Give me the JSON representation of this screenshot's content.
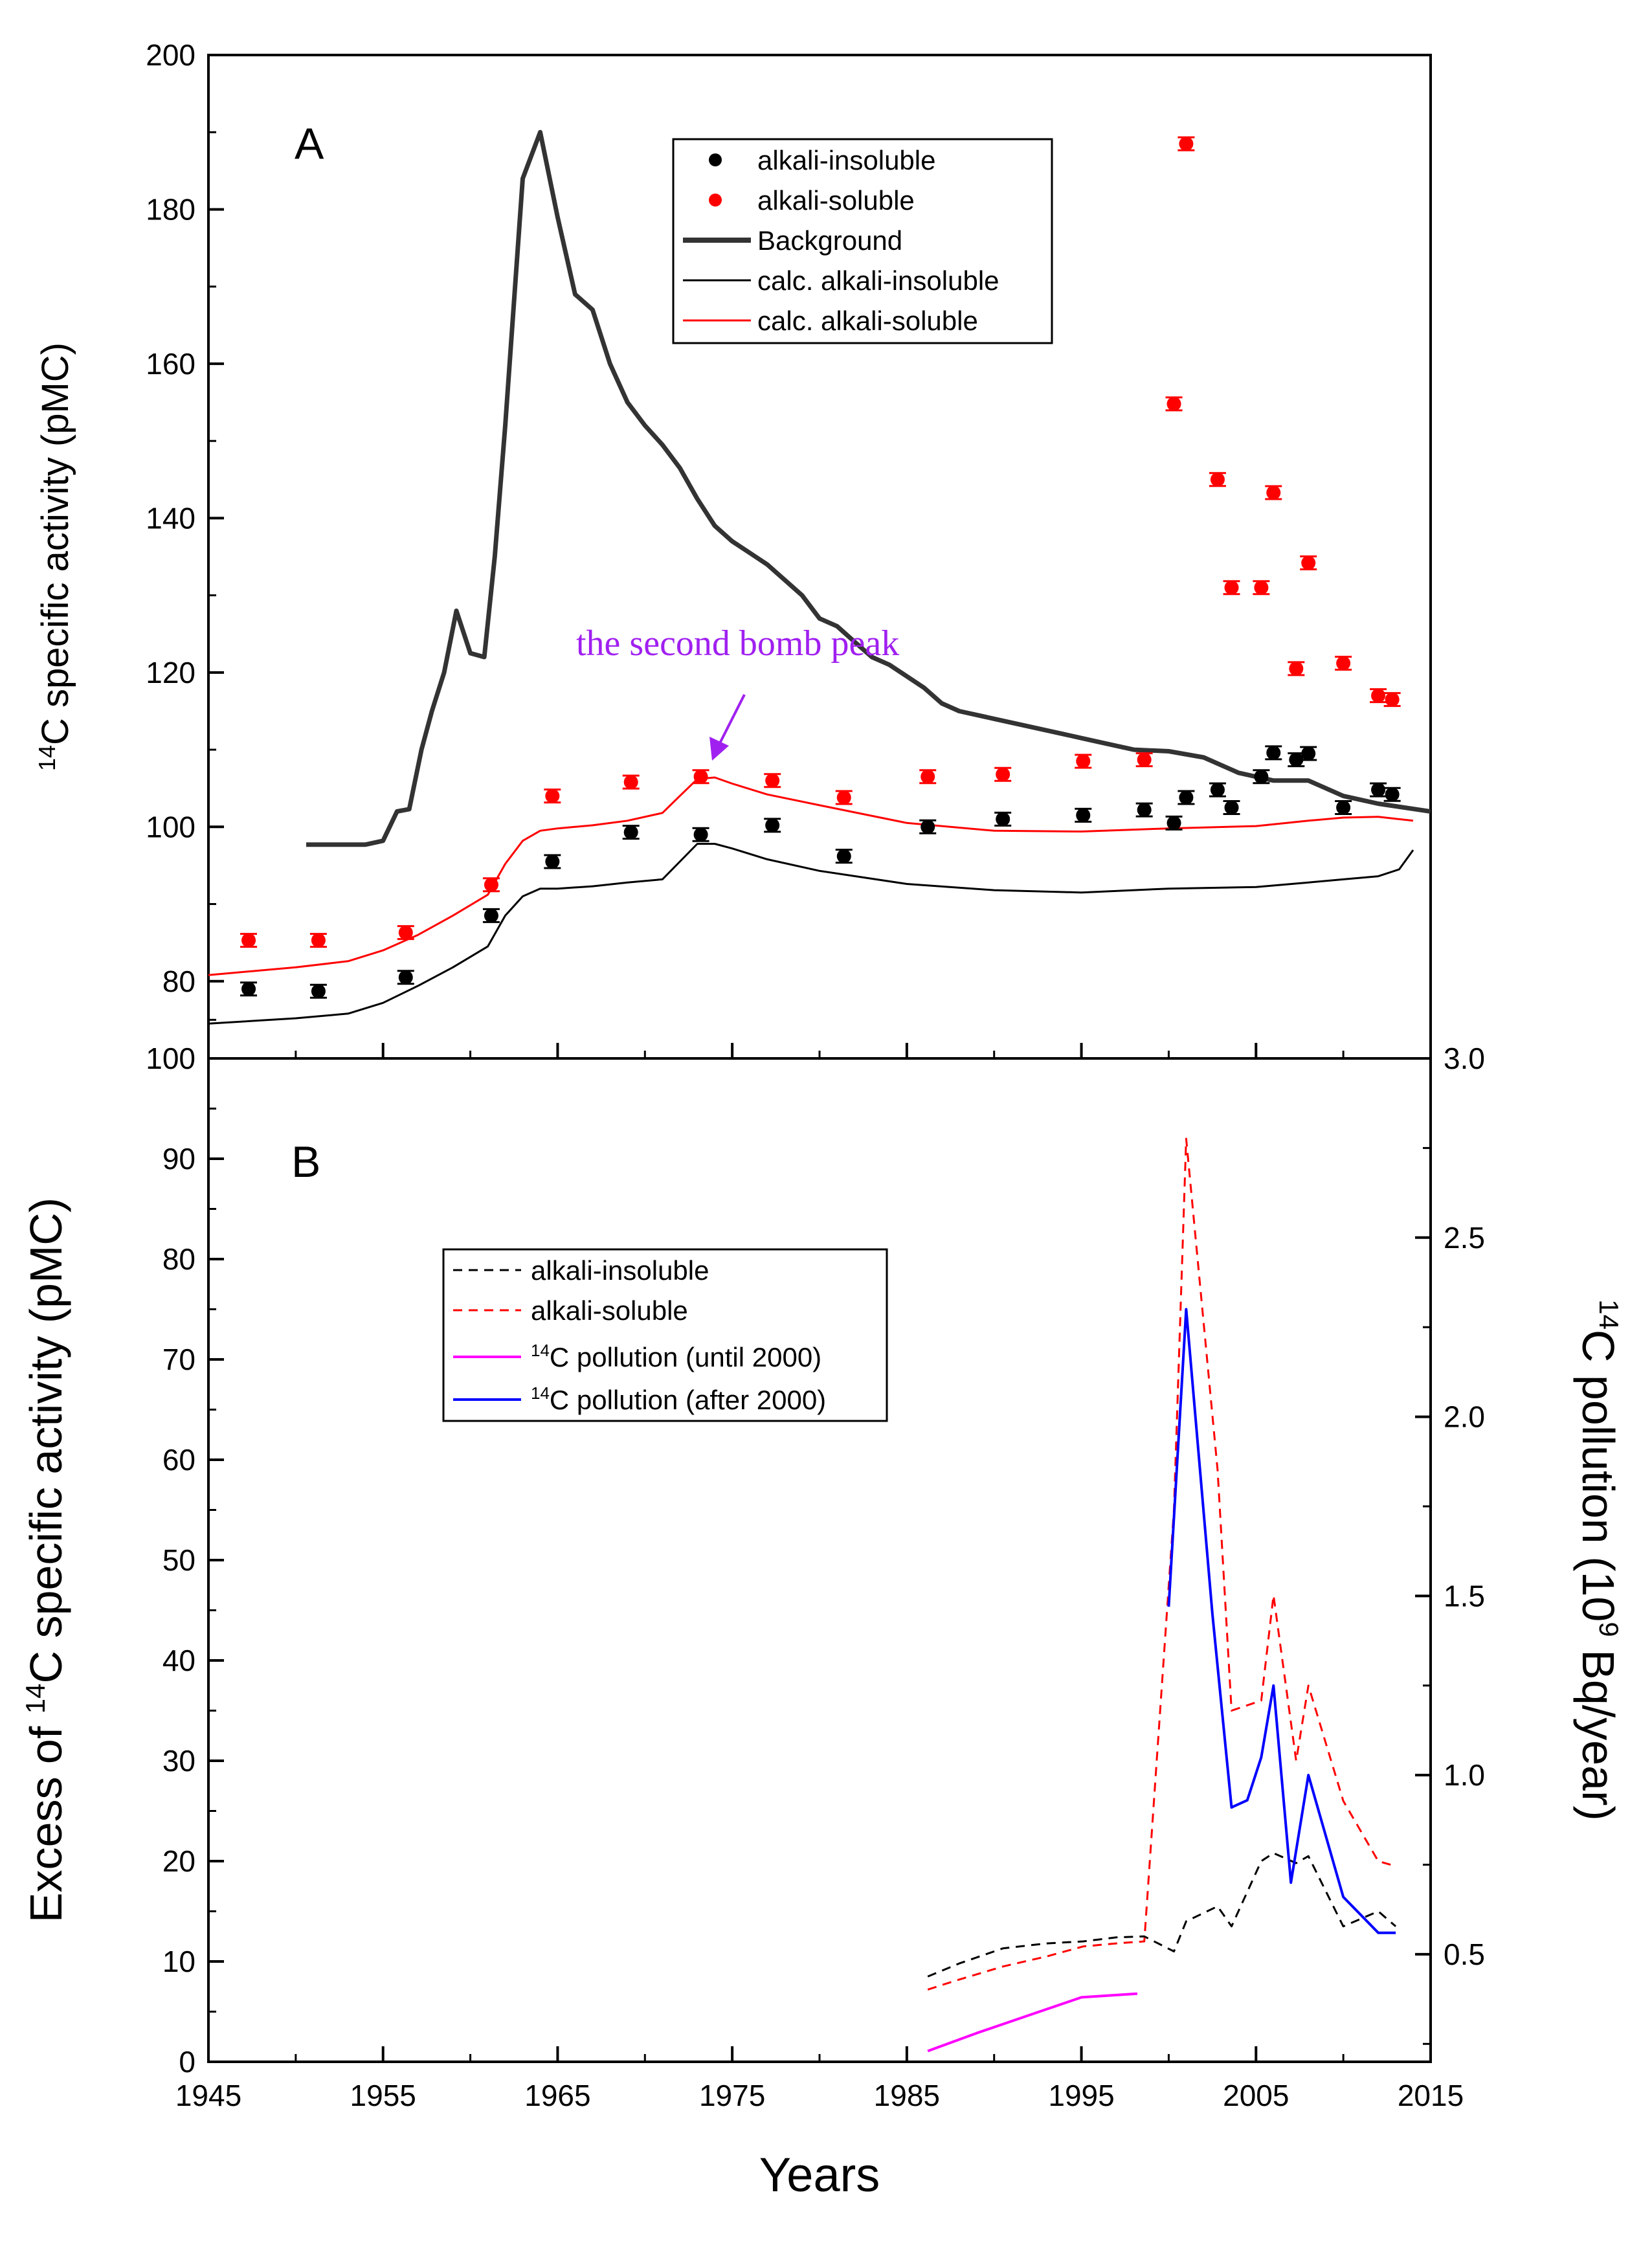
{
  "figure": {
    "x_axis_label": "Years"
  },
  "chart_data": [
    {
      "type": "line",
      "panel_label": "A",
      "ylabel": "14C specific activity (pMC)",
      "ylabel_parts": {
        "sup": "14",
        "rest": "C specific activity (pMC)"
      },
      "xlim": [
        1945,
        2015
      ],
      "ylim": [
        70,
        200
      ],
      "x_ticks": [
        1945,
        1955,
        1965,
        1975,
        1985,
        1995,
        2005,
        2015
      ],
      "y_ticks": [
        80,
        100,
        120,
        140,
        160,
        180,
        200
      ],
      "legend": {
        "position": "top-center",
        "entries": [
          {
            "label": "alkali-insoluble",
            "type": "marker",
            "color": "#000000"
          },
          {
            "label": "alkali-soluble",
            "type": "marker",
            "color": "#ff0000"
          },
          {
            "label": "Background",
            "type": "line",
            "color": "#333333",
            "width": "thick"
          },
          {
            "label": "calc. alkali-insoluble",
            "type": "line",
            "color": "#000000"
          },
          {
            "label": "calc. alkali-soluble",
            "type": "line",
            "color": "#ff0000"
          }
        ]
      },
      "annotation": {
        "text": "the second bomb peak",
        "color": "#a020f0",
        "points_to": [
          1973.2,
          106.5
        ]
      },
      "series": [
        {
          "name": "Background",
          "color": "#333333",
          "style": "line-thick",
          "x": [
            1950.6,
            1954.0,
            1955.0,
            1955.8,
            1956.5,
            1957.2,
            1957.8,
            1958.5,
            1959.2,
            1960.0,
            1960.8,
            1961.4,
            1962.0,
            1963.0,
            1964.0,
            1965.0,
            1966.0,
            1967.0,
            1968.0,
            1969.0,
            1970.0,
            1971.0,
            1972.0,
            1973.0,
            1974.0,
            1975.0,
            1976.0,
            1977.0,
            1978.0,
            1979.0,
            1980.0,
            1981.0,
            1982.0,
            1983.0,
            1984.0,
            1985.0,
            1986.0,
            1987.0,
            1988.0,
            1989.0,
            1990.0,
            1992.0,
            1994.0,
            1996.0,
            1998.0,
            2000.0,
            2002.0,
            2004.0,
            2006.0,
            2008.0,
            2010.0,
            2012.0,
            2015.0
          ],
          "y": [
            97.7,
            97.7,
            98.2,
            102,
            102.3,
            110,
            115,
            120,
            128,
            122.5,
            122,
            135,
            152,
            184,
            190,
            179,
            169,
            167,
            160,
            155,
            152,
            149.5,
            146.5,
            142.5,
            139,
            137,
            135.5,
            134,
            132,
            130,
            127,
            126,
            124,
            122,
            121,
            119.5,
            118,
            116,
            115,
            114.5,
            114,
            113,
            112,
            111,
            110,
            109.8,
            109,
            107,
            106,
            106,
            104,
            103,
            102
          ]
        },
        {
          "name": "calc. alkali-insoluble",
          "color": "#000000",
          "style": "line",
          "x": [
            1945,
            1950,
            1953,
            1955,
            1957,
            1959,
            1961,
            1962,
            1963,
            1964,
            1965,
            1967,
            1969,
            1971,
            1972,
            1973,
            1974,
            1975,
            1977,
            1980,
            1985,
            1990,
            1995,
            2000,
            2005,
            2008,
            2010,
            2012,
            2013.2,
            2014.0
          ],
          "y": [
            74.5,
            75.2,
            75.8,
            77.2,
            79.4,
            81.8,
            84.5,
            88.5,
            91.0,
            92.0,
            92.0,
            92.3,
            92.8,
            93.2,
            95.5,
            97.8,
            97.8,
            97.2,
            95.8,
            94.3,
            92.6,
            91.8,
            91.5,
            92.0,
            92.2,
            92.8,
            93.2,
            93.6,
            94.5,
            97.0
          ]
        },
        {
          "name": "calc. alkali-soluble",
          "color": "#ff0000",
          "style": "line",
          "x": [
            1945,
            1950,
            1953,
            1955,
            1957,
            1959,
            1961,
            1962,
            1963,
            1964,
            1965,
            1967,
            1969,
            1971,
            1972,
            1973,
            1974,
            1975,
            1977,
            1980,
            1985,
            1990,
            1995,
            2000,
            2005,
            2008,
            2010,
            2012,
            2014
          ],
          "y": [
            80.8,
            81.8,
            82.6,
            84.0,
            86.0,
            88.5,
            91.2,
            95.2,
            98.2,
            99.5,
            99.8,
            100.2,
            100.8,
            101.8,
            104.0,
            106.2,
            106.4,
            105.6,
            104.2,
            102.8,
            100.5,
            99.5,
            99.4,
            99.8,
            100.1,
            100.8,
            101.2,
            101.3,
            100.8
          ]
        },
        {
          "name": "alkali-insoluble",
          "color": "#000000",
          "style": "marker",
          "x": [
            1947.3,
            1951.3,
            1956.3,
            1961.2,
            1964.7,
            1969.2,
            1973.2,
            1977.3,
            1981.4,
            1986.2,
            1990.5,
            1995.1,
            1998.6,
            2000.3,
            2001.0,
            2002.8,
            2003.6,
            2005.3,
            2006.0,
            2007.3,
            2008.0,
            2010.0,
            2012.0,
            2012.8
          ],
          "y": [
            79.0,
            78.7,
            80.5,
            88.5,
            95.5,
            99.3,
            99.0,
            100.2,
            96.2,
            100.0,
            101.0,
            101.5,
            102.2,
            100.5,
            103.8,
            104.8,
            102.5,
            106.5,
            109.6,
            108.7,
            109.5,
            102.5,
            104.8,
            104.2
          ]
        },
        {
          "name": "alkali-soluble",
          "color": "#ff0000",
          "style": "marker",
          "x": [
            1947.3,
            1951.3,
            1956.3,
            1961.2,
            1964.7,
            1969.2,
            1973.2,
            1977.3,
            1981.4,
            1986.2,
            1990.5,
            1995.1,
            1998.6,
            2000.3,
            2001.0,
            2002.8,
            2003.6,
            2005.3,
            2006.0,
            2007.3,
            2008.0,
            2010.0,
            2012.0,
            2012.8
          ],
          "y": [
            85.3,
            85.3,
            86.3,
            92.5,
            104.0,
            105.8,
            106.5,
            106.0,
            103.8,
            106.5,
            106.8,
            108.5,
            108.7,
            154.8,
            188.5,
            145.0,
            131.0,
            131.0,
            143.3,
            120.5,
            134.2,
            121.2,
            117.0,
            116.5
          ]
        }
      ]
    },
    {
      "type": "line",
      "panel_label": "B",
      "ylabel": "Excess of 14C specific activity (pMC)",
      "ylabel_parts": {
        "pre": "Excess of ",
        "sup": "14",
        "rest": "C specific activity (pMC)"
      },
      "ylabel_right": "14C pollution (10^9 Bq/year)",
      "ylabel_right_parts": {
        "sup": "14",
        "mid": "C pollution (10",
        "sup2": "9",
        "rest": " Bq/year)"
      },
      "xlim": [
        1945,
        2015
      ],
      "ylim": [
        0,
        100
      ],
      "ylim_right": [
        0.2,
        3.0
      ],
      "x_ticks": [
        1945,
        1955,
        1965,
        1975,
        1985,
        1995,
        2005,
        2015
      ],
      "y_ticks": [
        0,
        10,
        20,
        30,
        40,
        50,
        60,
        70,
        80,
        90,
        100
      ],
      "y_ticks_right": [
        0.5,
        1.0,
        1.5,
        2.0,
        2.5,
        3.0
      ],
      "legend": {
        "position": "upper-center",
        "entries": [
          {
            "label": "alkali-insoluble",
            "type": "dashed",
            "color": "#000000"
          },
          {
            "label": "alkali-soluble",
            "type": "dashed",
            "color": "#ff0000"
          },
          {
            "label": "14C pollution (until 2000)",
            "sup": "14",
            "rest": "C pollution (until 2000)",
            "type": "line",
            "color": "#ff00ff"
          },
          {
            "label": "14C pollution (after 2000)",
            "sup": "14",
            "rest": "C pollution (after 2000)",
            "type": "line",
            "color": "#0000ff"
          }
        ]
      },
      "series": [
        {
          "name": "alkali-insoluble",
          "color": "#000000",
          "style": "dashed",
          "axis": "left",
          "x": [
            1986.2,
            1988,
            1990.5,
            1993,
            1995.1,
            1997,
            1998.6,
            2000.3,
            2001.0,
            2002.8,
            2003.6,
            2005.3,
            2006.0,
            2007.3,
            2008.0,
            2010.0,
            2012.0,
            2013.0
          ],
          "y": [
            8.5,
            9.8,
            11.3,
            11.8,
            12.0,
            12.4,
            12.5,
            11.0,
            14.0,
            15.5,
            13.5,
            20.0,
            20.8,
            19.8,
            20.5,
            13.5,
            15.0,
            13.5
          ]
        },
        {
          "name": "alkali-soluble",
          "color": "#ff0000",
          "style": "dashed",
          "axis": "left",
          "x": [
            1986.2,
            1988,
            1990.5,
            1993,
            1995.1,
            1997,
            1998.6,
            2000.3,
            2001.0,
            2002.8,
            2003.6,
            2005.3,
            2006.0,
            2007.3,
            2008.0,
            2010.0,
            2012.0,
            2013.0
          ],
          "y": [
            7.2,
            8.2,
            9.5,
            10.5,
            11.5,
            11.8,
            12.0,
            55.0,
            92.0,
            59.0,
            35.0,
            36.0,
            46.5,
            30.0,
            37.5,
            26.0,
            20.0,
            19.5
          ]
        },
        {
          "name": "14C pollution (until 2000)",
          "color": "#ff00ff",
          "style": "line",
          "axis": "right",
          "x": [
            1986.2,
            1989,
            1992,
            1995,
            1998.2
          ],
          "y": [
            0.23,
            0.28,
            0.33,
            0.38,
            0.39
          ]
        },
        {
          "name": "14C pollution (after 2000)",
          "color": "#0000ff",
          "style": "line",
          "axis": "right",
          "x": [
            2000.0,
            2001.0,
            2002.5,
            2003.6,
            2004.5,
            2005.3,
            2006.0,
            2007.0,
            2008.0,
            2010.0,
            2012.0,
            2013.0
          ],
          "y": [
            1.47,
            2.3,
            1.45,
            0.91,
            0.93,
            1.05,
            1.25,
            0.7,
            1.0,
            0.66,
            0.56,
            0.56
          ]
        }
      ]
    }
  ]
}
